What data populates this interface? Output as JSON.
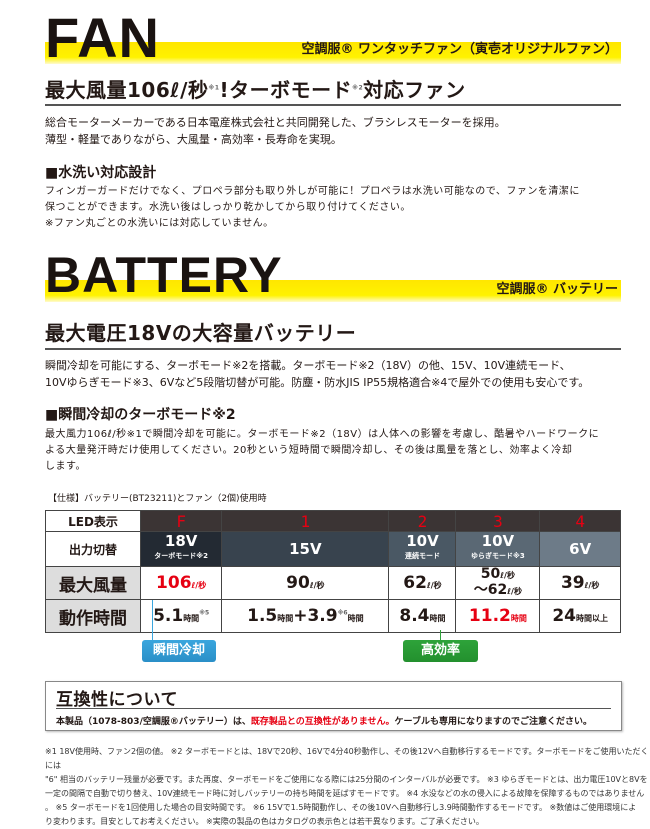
{
  "fan": {
    "title": "FAN",
    "subtitle": "空調服® ワンタッチファン（寅壱オリジナルファン）",
    "heading_a": "最大風量106ℓ/秒",
    "heading_sup1": "※1",
    "heading_b": "!ターボモード",
    "heading_sup2": "※2",
    "heading_c": "対応ファン",
    "para1": "総合モーターメーカーである日本電産株式会社と共同開発した、ブラシレスモーターを採用。",
    "para2": "薄型・軽量でありながら、大風量・高効率・長寿命を実現。",
    "wash_heading": "■水洗い対応設計",
    "wash1": "フィンガーガードだけでなく、プロペラ部分も取り外しが可能に！プロペラは水洗い可能なので、ファンを清潔に",
    "wash2": "保つことができます。水洗い後はしっかり乾かしてから取り付けてください。",
    "wash3": "※ファン丸ごとの水洗いには対応していません。"
  },
  "battery": {
    "title": "BATTERY",
    "subtitle": "空調服® バッテリー",
    "heading": "最大電圧18Vの大容量バッテリー",
    "para1": "瞬間冷却を可能にする、ターボモード※2を搭載。ターボモード※2（18V）の他、15V、10V連続モード、",
    "para2": "10Vゆらぎモード※3、6Vなど5段階切替が可能。防塵・防水JIS IP55規格適合※4で屋外での使用も安心です。",
    "turbo_heading": "■瞬間冷却のターボモード※2",
    "turbo1": "最大風力106ℓ/秒※1で瞬間冷却を可能に。ターボモード※2（18V）は人体への影響を考慮し、酷暑やハードワークに",
    "turbo2": "よる大量発汗時だけ使用してください。20秒という短時間で瞬間冷却し、その後は風量を落とし、効率よく冷却",
    "turbo3": "します。"
  },
  "spec": {
    "caption": "【仕様】バッテリー(BT23211)とファン（2個)使用時",
    "row_labels": [
      "LED表示",
      "出力切替",
      "最大風量",
      "動作時間"
    ],
    "led": [
      "F",
      "1",
      "2",
      "3",
      "4"
    ],
    "outputs": [
      {
        "v": "18V",
        "note": "ターボモード※2",
        "color": "#232a33"
      },
      {
        "v": "15V",
        "note": "",
        "color": "#38434e"
      },
      {
        "v": "10V",
        "note": "連続モード",
        "color": "#4a5864"
      },
      {
        "v": "10V",
        "note": "ゆらぎモード※3",
        "color": "#5a6874"
      },
      {
        "v": "6V",
        "note": "",
        "color": "#6d7b88"
      }
    ],
    "airflow": [
      {
        "n": "106",
        "u": "ℓ/秒"
      },
      {
        "n": "90",
        "u": "ℓ/秒"
      },
      {
        "n": "62",
        "u": "ℓ/秒"
      },
      {
        "n": "50",
        "u": "ℓ/秒",
        "n2": "〜62",
        "u2": "ℓ/秒"
      },
      {
        "n": "39",
        "u": "ℓ/秒"
      }
    ],
    "runtime": [
      {
        "n": "5.1",
        "u": "時間",
        "s": "※5"
      },
      {
        "n": "1.5",
        "u": "時間",
        "n2": "+3.9",
        "s": "※6",
        "u2": "時間"
      },
      {
        "n": "8.4",
        "u": "時間"
      },
      {
        "n": "11.2",
        "u": "時間"
      },
      {
        "n": "24",
        "u": "時間以上"
      }
    ],
    "tag_cool": "瞬間冷却",
    "tag_eff": "高効率",
    "accent_red": "#e60012",
    "tag_blue": "#3aa6de",
    "tag_green": "#2ea33a"
  },
  "compat": {
    "title": "互換性について",
    "text_a": "本製品（1078-803/空調服®バッテリー）は、",
    "text_red": "既存製品との互換性がありません。",
    "text_b": "ケーブルも専用になりますのでご注意ください。"
  },
  "footnotes": [
    "※1 18V使用時、ファン2個の値。 ※2 ターボモードとは、18Vで20秒、16Vで4分40秒動作し、その後12Vへ自動移行するモードです。ターボモードをご使用いただくには",
    "\"6\" 相当のバッテリー残量が必要です。また再度、ターボモードをご使用になる際には25分間のインターバルが必要です。 ※3 ゆらぎモードとは、出力電圧10Vと8Vを",
    "一定の間隔で自動で切り替え、10V連続モード時に対しバッテリーの持ち時間を延ばすモードです。 ※4 水没などの水の侵入による故障を保障するものではありません",
    "。 ※5 ターボモードを1回使用した場合の目安時間です。 ※6 15Vで1.5時間動作し、その後10Vへ自動移行し3.9時間動作するモードです。 ※数値はご使用環境によ",
    "り変わります。目安としてお考えください。 ※実際の製品の色はカタログの表示色とは若干異なります。ご了承ください。"
  ]
}
